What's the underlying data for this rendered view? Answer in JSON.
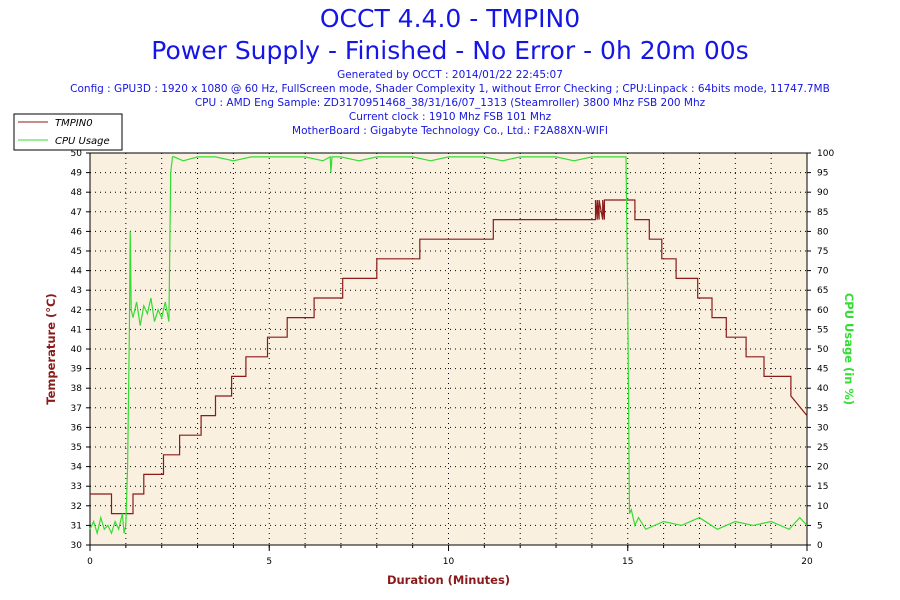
{
  "header": {
    "title": "OCCT 4.4.0 - TMPIN0",
    "subtitle": "Power Supply - Finished - No Error - 0h 20m 00s",
    "info": [
      "Generated by OCCT : 2014/01/22 22:45:07",
      "Config : GPU3D : 1920 x 1080 @ 60 Hz, FullScreen mode, Shader Complexity 1, without Error Checking ; CPU:Linpack : 64bits mode, 11747.7MB",
      "CPU : AMD Eng Sample: ZD3170951468_38/31/16/07_1313 (Steamroller) 3800 Mhz FSB 200 Mhz",
      "Current clock : 1910 Mhz FSB 101 Mhz",
      "MotherBoard : Gigabyte Technology Co., Ltd.: F2A88XN-WIFI"
    ]
  },
  "colors": {
    "temperature": "#8b1a1a",
    "cpu": "#33dd33",
    "plot_bg": "#faf0e0",
    "title": "#1515e6"
  },
  "chart_data": {
    "type": "line",
    "xlabel": "Duration (Minutes)",
    "ylabel": "Temperature (°C)",
    "y2label": "CPU Usage (in %)",
    "xlim": [
      0,
      20
    ],
    "ylim": [
      30,
      50
    ],
    "y2lim": [
      0,
      100
    ],
    "x_ticks": [
      0,
      5,
      10,
      15,
      20
    ],
    "y_ticks": [
      30,
      31,
      32,
      33,
      34,
      35,
      36,
      37,
      38,
      39,
      40,
      41,
      42,
      43,
      44,
      45,
      46,
      47,
      48,
      49,
      50
    ],
    "y2_ticks": [
      0,
      5,
      10,
      15,
      20,
      25,
      30,
      35,
      40,
      45,
      50,
      55,
      60,
      65,
      70,
      75,
      80,
      85,
      90,
      95,
      100
    ],
    "grid": true,
    "legend_position": "top-left",
    "series": [
      {
        "name": "TMPIN0",
        "axis": "left",
        "x": [
          0,
          0.6,
          0.6,
          1.2,
          1.2,
          1.5,
          1.5,
          2.05,
          2.05,
          2.5,
          2.5,
          3.1,
          3.1,
          3.5,
          3.5,
          3.95,
          3.95,
          4.35,
          4.35,
          4.95,
          4.95,
          5.5,
          5.5,
          6.25,
          6.25,
          7.05,
          7.05,
          8.0,
          8.0,
          9.2,
          9.2,
          11.25,
          11.25,
          14.1,
          14.1,
          14.15,
          14.15,
          14.2,
          14.2,
          14.3,
          14.3,
          14.35,
          14.35,
          14.45,
          14.45,
          15.2,
          15.2,
          15.6,
          15.6,
          15.95,
          15.95,
          16.35,
          16.35,
          16.95,
          16.95,
          17.35,
          17.35,
          17.75,
          17.75,
          18.3,
          18.3,
          18.8,
          18.8,
          19.55,
          19.55,
          20.0
        ],
        "y": [
          32.6,
          32.6,
          31.6,
          31.6,
          32.6,
          32.6,
          33.6,
          33.6,
          34.6,
          34.6,
          35.6,
          35.6,
          36.6,
          36.6,
          37.6,
          37.6,
          38.6,
          38.6,
          39.6,
          39.6,
          40.6,
          40.6,
          41.6,
          41.6,
          42.6,
          42.6,
          43.6,
          43.6,
          44.6,
          44.6,
          45.6,
          45.6,
          46.6,
          46.6,
          47.6,
          46.6,
          47.6,
          46.6,
          47.6,
          46.6,
          47.6,
          46.6,
          47.6,
          47.6,
          47.6,
          47.6,
          46.6,
          46.6,
          45.6,
          45.6,
          44.6,
          44.6,
          43.6,
          43.6,
          42.6,
          42.6,
          41.6,
          41.6,
          40.6,
          40.6,
          39.6,
          39.6,
          38.6,
          38.6,
          37.6,
          36.6
        ]
      },
      {
        "name": "CPU Usage",
        "axis": "right",
        "x": [
          0,
          0.1,
          0.2,
          0.3,
          0.4,
          0.5,
          0.6,
          0.7,
          0.8,
          0.9,
          0.95,
          1.0,
          1.05,
          1.1,
          1.12,
          1.15,
          1.2,
          1.3,
          1.4,
          1.5,
          1.6,
          1.7,
          1.8,
          1.9,
          2.0,
          2.1,
          2.2,
          2.25,
          2.3,
          2.35,
          2.6,
          3.0,
          3.5,
          4.0,
          4.5,
          5.0,
          5.5,
          6.0,
          6.5,
          6.7,
          6.72,
          6.75,
          7.0,
          7.5,
          8.0,
          8.5,
          9.0,
          9.5,
          10.0,
          10.5,
          11.0,
          11.5,
          12.0,
          12.5,
          13.0,
          13.5,
          14.0,
          14.5,
          14.95,
          15.0,
          15.05,
          15.1,
          15.2,
          15.3,
          15.5,
          16.0,
          16.5,
          17.0,
          17.5,
          18.0,
          18.5,
          19.0,
          19.5,
          19.8,
          20.0
        ],
        "y": [
          4,
          6,
          3,
          7,
          4,
          5,
          3,
          6,
          4,
          8,
          3,
          5,
          20,
          55,
          80,
          60,
          58,
          62,
          56,
          61,
          59,
          63,
          57,
          60,
          58,
          62,
          57,
          95,
          99,
          99,
          98,
          99,
          99,
          98,
          99,
          99,
          99,
          99,
          98,
          99,
          95,
          99,
          99,
          98,
          99,
          99,
          99,
          98,
          99,
          99,
          99,
          98,
          99,
          99,
          99,
          98,
          99,
          99,
          99,
          60,
          8,
          9,
          5,
          7,
          4,
          6,
          5,
          7,
          4,
          6,
          5,
          6,
          4,
          7,
          5
        ]
      }
    ]
  }
}
